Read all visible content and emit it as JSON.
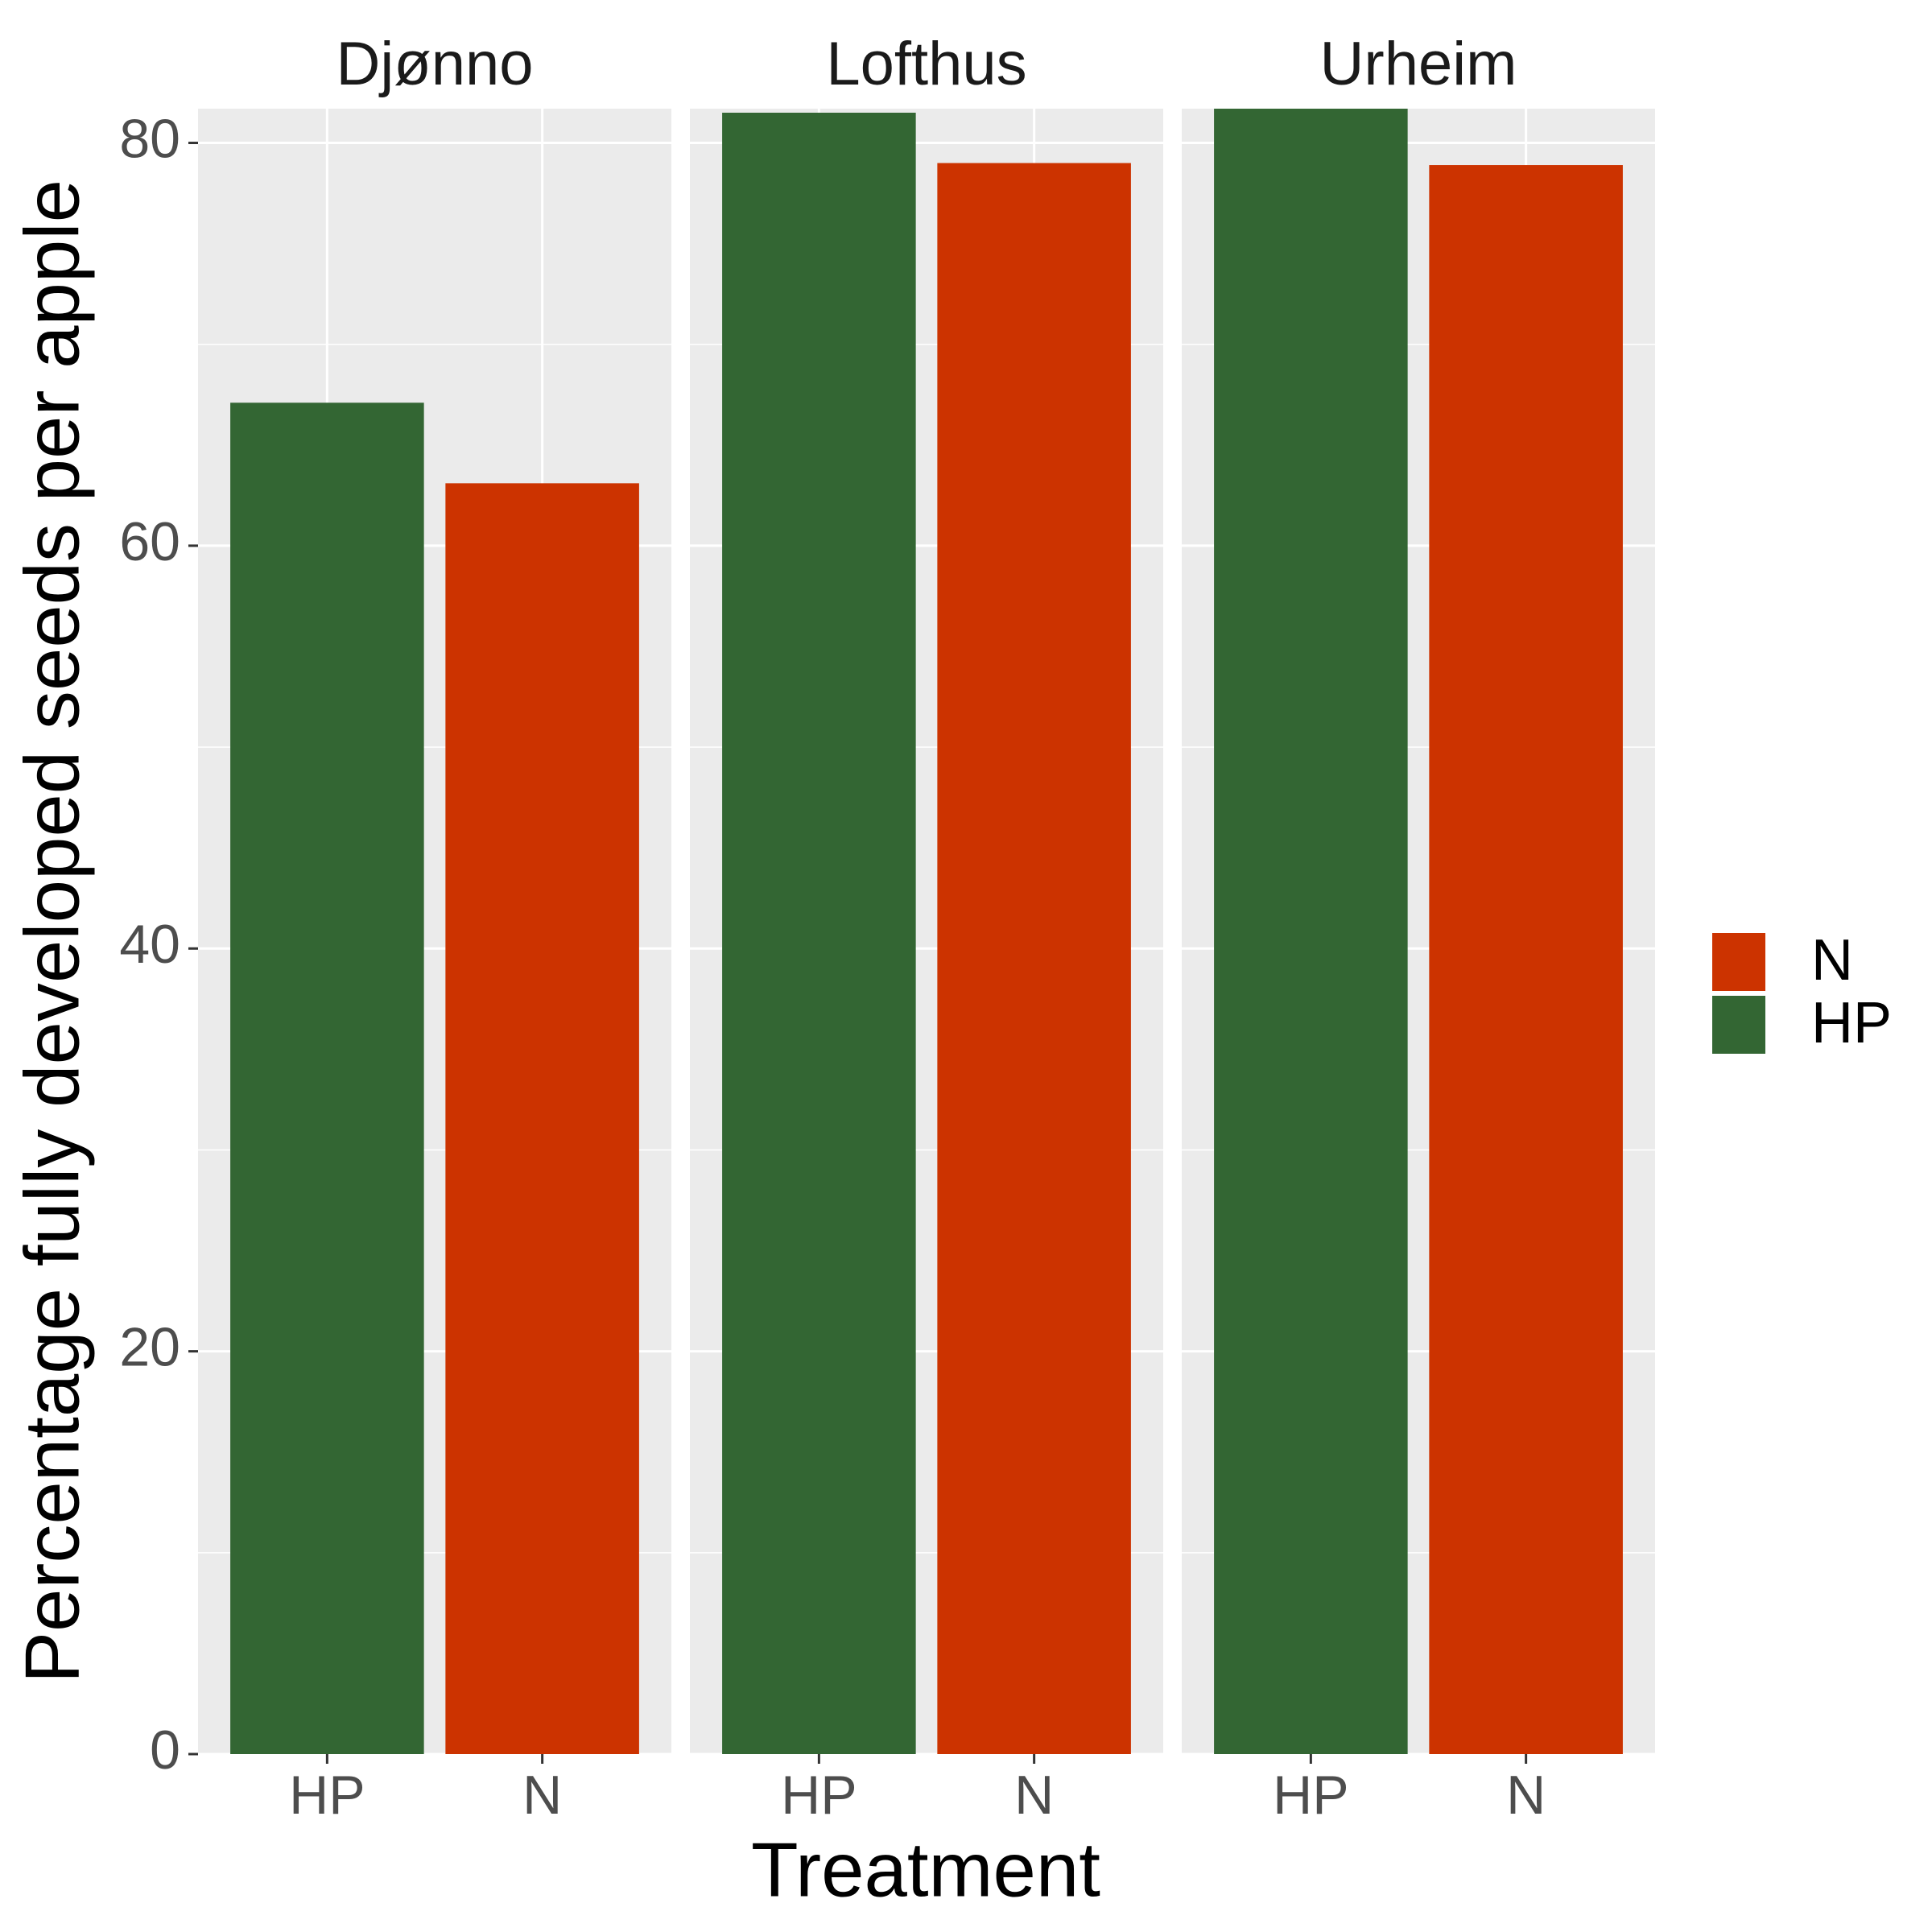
{
  "chart_data": {
    "type": "bar",
    "x_label": "Treatment",
    "y_label": "Percentage fully developed seeds per apple",
    "facets": [
      {
        "title": "Djønno",
        "categories": [
          "HP",
          "N"
        ],
        "values": [
          67.1,
          63.1
        ]
      },
      {
        "title": "Lofthus",
        "categories": [
          "HP",
          "N"
        ],
        "values": [
          81.5,
          79.0
        ]
      },
      {
        "title": "Urheim",
        "categories": [
          "HP",
          "N"
        ],
        "values": [
          81.7,
          78.9
        ]
      }
    ],
    "legend": [
      {
        "name": "N",
        "color": "#cc3300"
      },
      {
        "name": "HP",
        "color": "#336633"
      }
    ],
    "ylim": [
      0,
      81.7
    ],
    "yticks": [
      0,
      20,
      40,
      60,
      80
    ],
    "grid": true
  }
}
